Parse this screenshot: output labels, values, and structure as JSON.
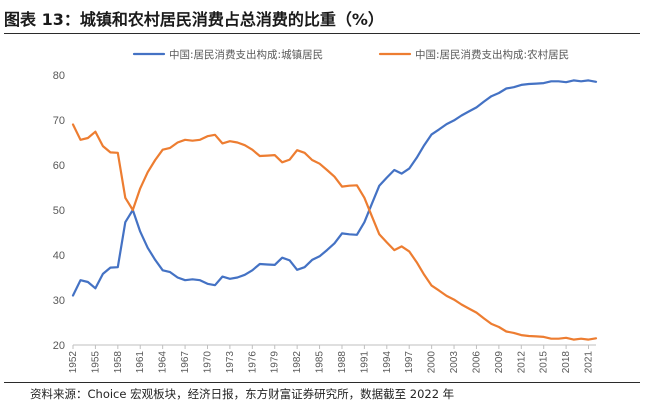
{
  "figure": {
    "title": "图表 13：城镇和农村居民消费占总消费的比重（%）",
    "source": "资料来源：Choice 宏观板块，经济日报，东方财富证券研究所，数据截至 2022 年"
  },
  "chart_data": {
    "type": "line",
    "title": "",
    "xlabel": "",
    "ylabel": "",
    "ylim": [
      20,
      80
    ],
    "yticks": [
      20,
      30,
      40,
      50,
      60,
      70,
      80
    ],
    "xlim": [
      1952,
      2022
    ],
    "xticks": [
      "1952",
      "1955",
      "1958",
      "1961",
      "1964",
      "1967",
      "1970",
      "1973",
      "1976",
      "1979",
      "1982",
      "1985",
      "1988",
      "1991",
      "1994",
      "1997",
      "2000",
      "2003",
      "2006",
      "2009",
      "2012",
      "2015",
      "2018",
      "2021"
    ],
    "grid": false,
    "legend": "top",
    "x": [
      1952,
      1953,
      1954,
      1955,
      1956,
      1957,
      1958,
      1959,
      1960,
      1961,
      1962,
      1963,
      1964,
      1965,
      1966,
      1967,
      1968,
      1969,
      1970,
      1971,
      1972,
      1973,
      1974,
      1975,
      1976,
      1977,
      1978,
      1979,
      1980,
      1981,
      1982,
      1983,
      1984,
      1985,
      1986,
      1987,
      1988,
      1989,
      1990,
      1991,
      1992,
      1993,
      1994,
      1995,
      1996,
      1997,
      1998,
      1999,
      2000,
      2001,
      2002,
      2003,
      2004,
      2005,
      2006,
      2007,
      2008,
      2009,
      2010,
      2011,
      2012,
      2013,
      2014,
      2015,
      2016,
      2017,
      2018,
      2019,
      2020,
      2021,
      2022
    ],
    "series": [
      {
        "name": "中国:居民消费支出构成:城镇居民",
        "color": "#4472c4",
        "values": [
          31.0,
          34.4,
          34.0,
          32.6,
          35.8,
          37.2,
          37.3,
          47.3,
          50.0,
          45.2,
          41.6,
          38.9,
          36.6,
          36.2,
          35.0,
          34.4,
          34.6,
          34.4,
          33.6,
          33.3,
          35.2,
          34.7,
          35.0,
          35.6,
          36.6,
          38.0,
          37.9,
          37.8,
          39.4,
          38.8,
          36.7,
          37.3,
          38.9,
          39.7,
          41.1,
          42.6,
          44.8,
          44.6,
          44.5,
          47.3,
          51.4,
          55.4,
          57.2,
          58.9,
          58.1,
          59.2,
          61.6,
          64.4,
          66.8,
          67.9,
          69.1,
          69.9,
          71.0,
          71.9,
          72.8,
          74.1,
          75.3,
          76.0,
          77.0,
          77.3,
          77.8,
          78.0,
          78.1,
          78.2,
          78.6,
          78.6,
          78.4,
          78.8,
          78.6,
          78.8,
          78.5
        ]
      },
      {
        "name": "中国:居民消费支出构成:农村居民",
        "color": "#ed7d31",
        "values": [
          69.0,
          65.6,
          66.0,
          67.4,
          64.2,
          62.8,
          62.7,
          52.7,
          50.0,
          54.8,
          58.4,
          61.1,
          63.4,
          63.8,
          65.0,
          65.6,
          65.4,
          65.6,
          66.4,
          66.7,
          64.8,
          65.3,
          65.0,
          64.4,
          63.4,
          62.0,
          62.1,
          62.2,
          60.6,
          61.2,
          63.3,
          62.7,
          61.1,
          60.3,
          58.9,
          57.4,
          55.2,
          55.4,
          55.5,
          52.7,
          48.6,
          44.6,
          42.8,
          41.1,
          41.9,
          40.8,
          38.4,
          35.6,
          33.2,
          32.1,
          30.9,
          30.1,
          29.0,
          28.1,
          27.2,
          25.9,
          24.7,
          24.0,
          23.0,
          22.7,
          22.2,
          22.0,
          21.9,
          21.8,
          21.4,
          21.4,
          21.6,
          21.2,
          21.4,
          21.2,
          21.5
        ]
      }
    ]
  }
}
